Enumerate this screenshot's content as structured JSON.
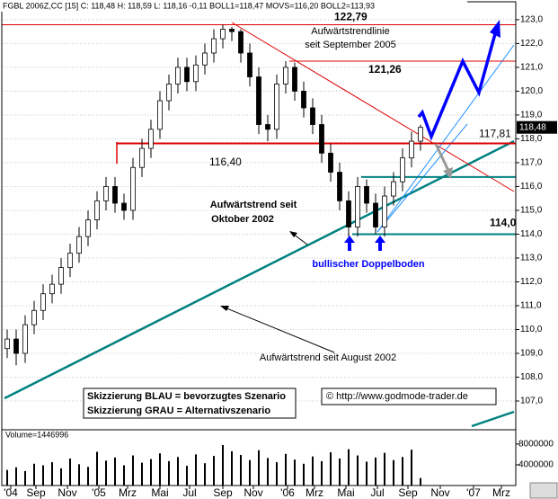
{
  "chart_data": {
    "type": "candlestick",
    "header": "FGBL 2006Z,CC [15] C: 118,48 H: 118,59 L: 118,16 -0,11 BOLL1=118,47 MOVS=116,20 BOLL2=113,93",
    "last_price_label": "118,48",
    "ylim": [
      105.85,
      123.75
    ],
    "yticks": [
      {
        "value": 107,
        "label": "107,0"
      },
      {
        "value": 108,
        "label": "108,0"
      },
      {
        "value": 109,
        "label": "109,0"
      },
      {
        "value": 110,
        "label": "110,0"
      },
      {
        "value": 111,
        "label": "111,0"
      },
      {
        "value": 112,
        "label": "112,0"
      },
      {
        "value": 113,
        "label": "113,0"
      },
      {
        "value": 114,
        "label": "114,0"
      },
      {
        "value": 115,
        "label": "115,0"
      },
      {
        "value": 116,
        "label": "116,0"
      },
      {
        "value": 117,
        "label": "117,0"
      },
      {
        "value": 118,
        "label": "118,0"
      },
      {
        "value": 119,
        "label": "119,0"
      },
      {
        "value": 120,
        "label": "120,0"
      },
      {
        "value": 121,
        "label": "121,0"
      },
      {
        "value": 122,
        "label": "122,0"
      },
      {
        "value": 123,
        "label": "123,0"
      }
    ],
    "x_labels": [
      "'04",
      "Sep",
      "Nov",
      "'05",
      "Mrz",
      "Mai",
      "Jul",
      "Sep",
      "Nov",
      "'06",
      "Mrz",
      "Mai",
      "Jul",
      "Sep",
      "Nov",
      "'07",
      "Mrz"
    ],
    "open": [
      109.2,
      109.6,
      109.0,
      110.2,
      110.8,
      111.5,
      111.9,
      112.6,
      113.2,
      113.9,
      114.6,
      115.4,
      116.0,
      115.3,
      115.0,
      116.8,
      117.6,
      118.4,
      119.6,
      120.3,
      121.0,
      120.4,
      121.1,
      121.6,
      122.2,
      122.6,
      122.5,
      121.6,
      120.6,
      118.6,
      118.4,
      120.3,
      121.0,
      120.0,
      119.3,
      118.6,
      117.4,
      116.6,
      115.4,
      114.3,
      116.0,
      115.3,
      114.3,
      115.6,
      116.2,
      117.2,
      117.9
    ],
    "high": [
      110.0,
      110.0,
      110.6,
      111.2,
      111.9,
      112.3,
      113.0,
      113.6,
      114.3,
      115.0,
      115.8,
      116.4,
      116.4,
      115.7,
      117.2,
      118.0,
      118.8,
      120.0,
      120.7,
      121.4,
      121.4,
      121.5,
      122.0,
      122.6,
      122.79,
      122.7,
      122.6,
      122.0,
      121.0,
      119.0,
      120.7,
      121.26,
      121.2,
      120.4,
      119.7,
      119.0,
      117.8,
      117.0,
      115.8,
      116.4,
      116.3,
      115.7,
      116.0,
      116.6,
      117.6,
      118.3,
      118.59
    ],
    "low": [
      108.8,
      108.5,
      108.6,
      109.8,
      110.4,
      111.1,
      111.5,
      112.2,
      112.8,
      113.5,
      114.2,
      115.0,
      114.9,
      114.6,
      114.6,
      116.4,
      117.2,
      118.0,
      119.2,
      119.9,
      120.0,
      120.0,
      120.7,
      121.2,
      121.8,
      122.1,
      121.2,
      120.2,
      118.2,
      117.9,
      118.0,
      119.9,
      119.6,
      118.9,
      118.2,
      117.0,
      116.2,
      115.0,
      113.9,
      113.9,
      114.9,
      114.0,
      113.9,
      115.2,
      115.8,
      116.8,
      117.5
    ],
    "close": [
      109.6,
      109.0,
      110.2,
      110.8,
      111.5,
      111.9,
      112.6,
      113.2,
      113.9,
      114.6,
      115.4,
      116.0,
      115.3,
      115.0,
      116.8,
      117.6,
      118.4,
      119.6,
      120.3,
      121.0,
      120.4,
      121.1,
      121.6,
      122.2,
      122.6,
      122.5,
      121.6,
      120.6,
      118.6,
      118.4,
      120.3,
      121.0,
      120.0,
      119.3,
      118.6,
      117.4,
      116.6,
      115.4,
      114.3,
      116.0,
      115.3,
      114.3,
      115.6,
      116.2,
      117.2,
      117.9,
      118.48
    ],
    "volume_label": "Volume=1446996",
    "volume": [
      3000000,
      3500000,
      2800000,
      4200000,
      3900000,
      4500000,
      3300000,
      5200000,
      4100000,
      3600000,
      6500000,
      4800000,
      5400000,
      3900000,
      5800000,
      4400000,
      5100000,
      6200000,
      4700000,
      5500000,
      3800000,
      6000000,
      4300000,
      5700000,
      7800000,
      6600000,
      5900000,
      4900000,
      6800000,
      5300000,
      4500000,
      6100000,
      5000000,
      4200000,
      5600000,
      4700000,
      6400000,
      5200000,
      7000000,
      5800000,
      4600000,
      5400000,
      6300000,
      4900000,
      5500000,
      6900000,
      1446996
    ],
    "vylim": [
      0,
      10400000
    ],
    "vticks": [
      4000000,
      8000000
    ],
    "levels": [
      {
        "value": 122.79,
        "label": "122,79"
      },
      {
        "value": 121.26,
        "label": "121,26"
      },
      {
        "value": 117.81,
        "label": "117,81"
      },
      {
        "value": 116.4,
        "label": "116,40"
      },
      {
        "value": 114.0,
        "label": "114,0"
      }
    ],
    "annotations": {
      "downtrend_1": "Aufwärtstrendlinie",
      "downtrend_2": "seit September 2005",
      "trend_oct_1": "Aufwärtstrend seit",
      "trend_oct_2": "Oktober 2002",
      "double_bottom": "bullischer Doppelboden",
      "trend_aug": "Aufwärtstrend seit August 2002",
      "legend_blue": "Skizzierung BLAU = bevorzugtes Szenario",
      "legend_grey": "Skizzierung GRAU = Alternativszenario",
      "copyright": "© http://www.godmode-trader.de"
    }
  }
}
